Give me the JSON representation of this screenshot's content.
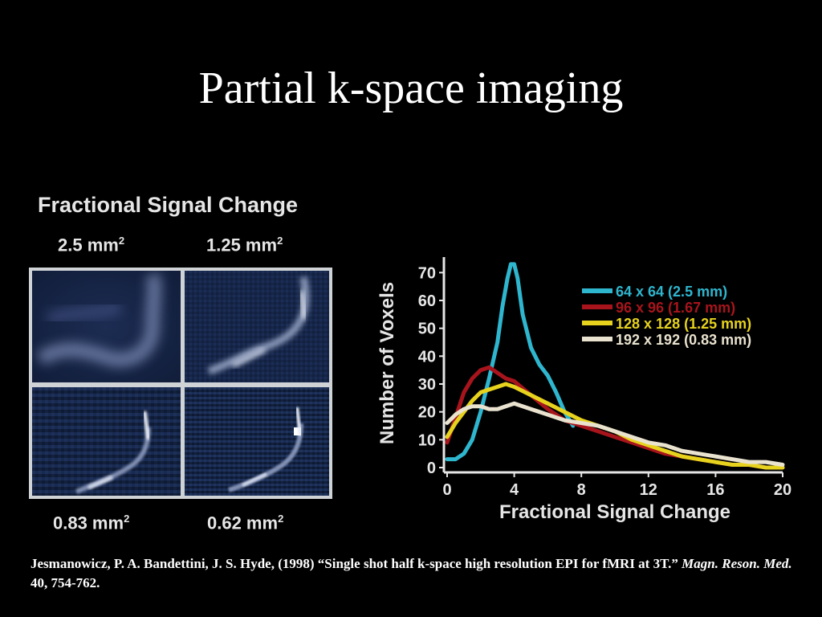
{
  "slide": {
    "title": "Partial k-space imaging"
  },
  "left_panel": {
    "heading": "Fractional Signal Change",
    "labels": {
      "top_left": "2.5 mm",
      "top_right": "1.25 mm",
      "bottom_left": "0.83 mm",
      "bottom_right": "0.62 mm",
      "superscript": "2"
    }
  },
  "citation": {
    "authors": "Jesmanowicz, P. A. Bandettini, J. S. Hyde, (1998) ",
    "article": "“Single shot half k-space high resolution EPI for fMRI at 3T.” ",
    "journal": "Magn. Reson. Med.",
    "volume_pages": " 40, 754-762."
  },
  "chart_data": {
    "type": "line",
    "xlabel": "Fractional Signal Change",
    "ylabel": "Number of Voxels",
    "xlim": [
      0,
      20
    ],
    "ylim": [
      0,
      75
    ],
    "xticks": [
      0,
      4,
      8,
      12,
      16,
      20
    ],
    "yticks": [
      0,
      10,
      20,
      30,
      40,
      50,
      60,
      70
    ],
    "legend_position": "top-right",
    "series": [
      {
        "name": "64 x 64 (2.5 mm)",
        "color": "#2fb6cf",
        "x": [
          0,
          0.5,
          1,
          1.5,
          2,
          2.5,
          3,
          3.3,
          3.6,
          3.8,
          4,
          4.2,
          4.5,
          5,
          5.5,
          6,
          6.5,
          7,
          7.5
        ],
        "y": [
          3,
          3,
          5,
          10,
          20,
          32,
          45,
          58,
          68,
          73,
          73,
          68,
          55,
          43,
          37,
          33,
          27,
          20,
          15
        ]
      },
      {
        "name": "96 x 96 (1.67 mm)",
        "color": "#a8141c",
        "x": [
          0,
          0.5,
          1,
          1.5,
          2,
          2.5,
          3,
          3.5,
          4,
          5,
          6,
          7,
          8,
          9,
          10,
          11,
          12,
          13,
          14,
          15,
          16,
          17,
          18,
          19,
          20
        ],
        "y": [
          9,
          18,
          27,
          32,
          35,
          36,
          34,
          32,
          31,
          26,
          21,
          17,
          15,
          13,
          11,
          9,
          7,
          5,
          4,
          3,
          2,
          1,
          1,
          0,
          0
        ]
      },
      {
        "name": "128 x 128 (1.25 mm)",
        "color": "#e7d21e",
        "x": [
          0,
          0.5,
          1,
          1.5,
          2,
          2.5,
          3,
          3.5,
          4,
          5,
          6,
          7,
          8,
          9,
          10,
          11,
          12,
          13,
          14,
          15,
          16,
          17,
          18,
          19,
          20
        ],
        "y": [
          11,
          16,
          20,
          24,
          27,
          28,
          29,
          30,
          29,
          26,
          23,
          20,
          17,
          15,
          13,
          10,
          8,
          6,
          4,
          3,
          2,
          1,
          1,
          0,
          0
        ]
      },
      {
        "name": "192 x 192 (0.83 mm)",
        "color": "#e9e2cf",
        "x": [
          0,
          0.5,
          1,
          1.5,
          2,
          2.5,
          3,
          3.5,
          4,
          5,
          6,
          7,
          8,
          9,
          10,
          11,
          12,
          13,
          14,
          15,
          16,
          17,
          18,
          19,
          20
        ],
        "y": [
          16,
          19,
          21,
          22,
          22,
          21,
          21,
          22,
          23,
          21,
          19,
          17,
          16,
          15,
          13,
          11,
          9,
          8,
          6,
          5,
          4,
          3,
          2,
          2,
          1
        ]
      }
    ]
  }
}
